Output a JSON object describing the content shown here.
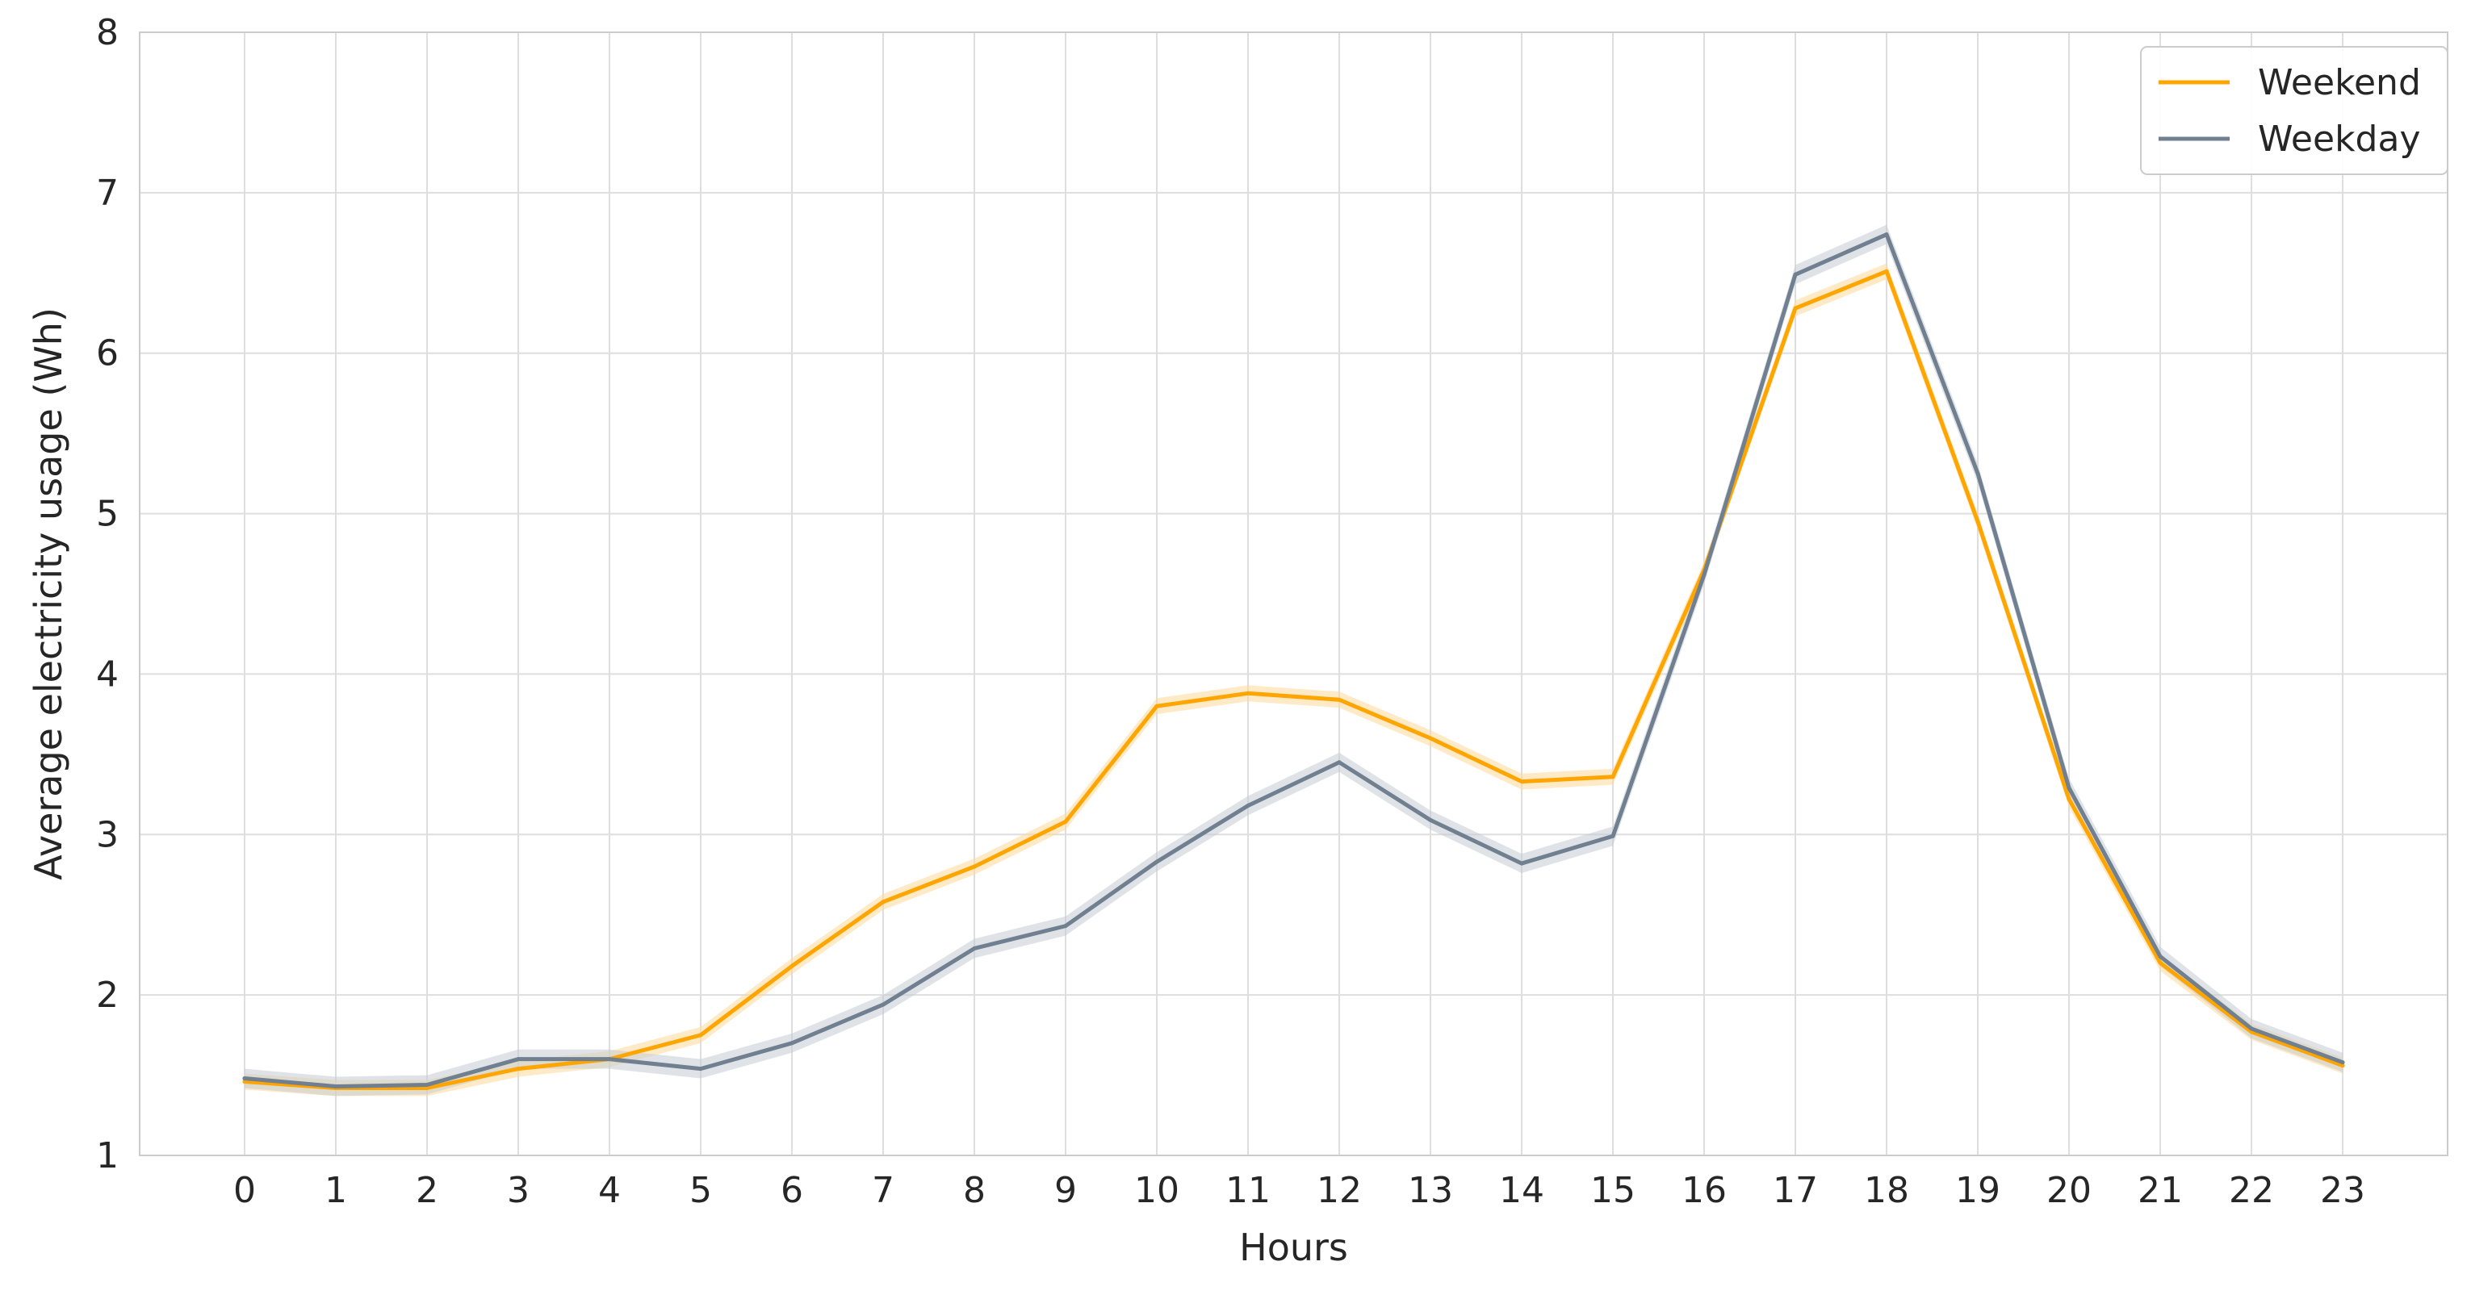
{
  "chart_data": {
    "type": "line",
    "title": "",
    "xlabel": "Hours",
    "ylabel": "Average electricity usage (Wh)",
    "x": [
      0,
      1,
      2,
      3,
      4,
      5,
      6,
      7,
      8,
      9,
      10,
      11,
      12,
      13,
      14,
      15,
      16,
      17,
      18,
      19,
      20,
      21,
      22,
      23
    ],
    "xlim": [
      -1.15,
      24.15
    ],
    "ylim": [
      1,
      8
    ],
    "yticks": [
      1,
      2,
      3,
      4,
      5,
      6,
      7,
      8
    ],
    "grid": true,
    "legend_position": "top-right",
    "series": [
      {
        "name": "Weekend",
        "color": "#FFA500",
        "band_color": "#FFD99A",
        "values": [
          1.46,
          1.42,
          1.42,
          1.54,
          1.6,
          1.75,
          2.18,
          2.58,
          2.8,
          3.08,
          3.8,
          3.88,
          3.84,
          3.6,
          3.33,
          3.36,
          4.65,
          6.28,
          6.51,
          4.95,
          3.22,
          2.2,
          1.77,
          1.56
        ],
        "band": 0.05
      },
      {
        "name": "Weekday",
        "color": "#708090",
        "band_color": "#C5CCD3",
        "values": [
          1.48,
          1.43,
          1.44,
          1.6,
          1.6,
          1.54,
          1.7,
          1.94,
          2.29,
          2.43,
          2.83,
          3.18,
          3.45,
          3.09,
          2.82,
          2.99,
          4.62,
          6.49,
          6.74,
          5.25,
          3.29,
          2.24,
          1.79,
          1.58
        ],
        "band": 0.06
      }
    ]
  }
}
